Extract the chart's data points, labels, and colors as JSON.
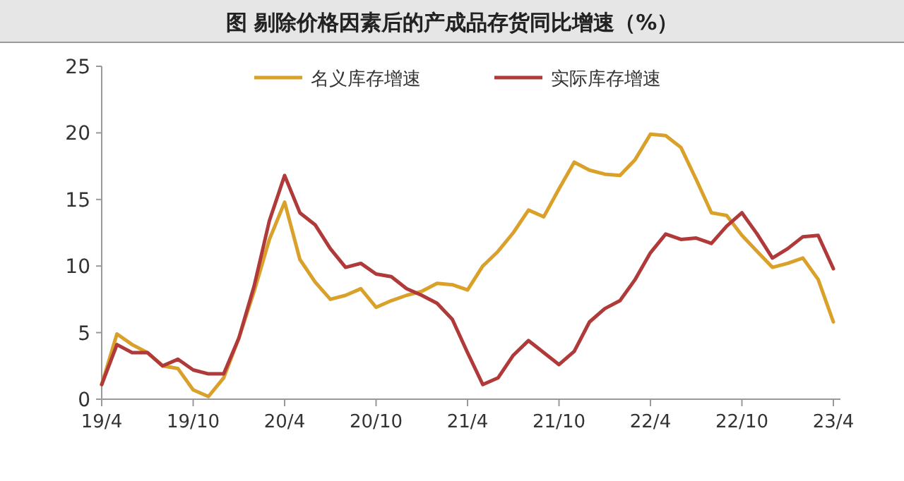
{
  "chart_data": {
    "type": "line",
    "title": "图  剔除价格因素后的产成品存货同比增速（%）",
    "categories": [
      "19/4",
      null,
      null,
      null,
      null,
      null,
      "19/10",
      null,
      null,
      null,
      null,
      null,
      "20/4",
      null,
      null,
      null,
      null,
      null,
      "20/10",
      null,
      null,
      null,
      null,
      null,
      "21/4",
      null,
      null,
      null,
      null,
      null,
      "21/10",
      null,
      null,
      null,
      null,
      null,
      "22/4",
      null,
      null,
      null,
      null,
      null,
      "22/10",
      null,
      null,
      null,
      null,
      null,
      "23/4"
    ],
    "series": [
      {
        "name": "名义库存增速",
        "color": "#d9a02a",
        "values": [
          1.1,
          4.9,
          4.1,
          3.5,
          2.5,
          2.3,
          0.7,
          0.2,
          1.6,
          4.6,
          8.1,
          12.0,
          14.8,
          10.5,
          8.8,
          7.5,
          7.8,
          8.3,
          6.9,
          7.4,
          7.8,
          8.1,
          8.7,
          8.6,
          8.2,
          10.0,
          11.1,
          12.5,
          14.2,
          13.7,
          15.8,
          17.8,
          17.2,
          16.9,
          16.8,
          18.0,
          19.9,
          19.8,
          18.9,
          16.5,
          14.0,
          13.8,
          12.3,
          11.1,
          9.9,
          10.2,
          10.6,
          9.0,
          5.8
        ]
      },
      {
        "name": "实际库存增速",
        "color": "#b03a3a",
        "values": [
          1.1,
          4.1,
          3.5,
          3.5,
          2.5,
          3.0,
          2.2,
          1.9,
          1.9,
          4.6,
          8.5,
          13.4,
          16.8,
          14.0,
          13.1,
          11.3,
          9.9,
          10.2,
          9.4,
          9.2,
          8.3,
          7.8,
          7.2,
          6.0,
          3.5,
          1.1,
          1.6,
          3.3,
          4.4,
          3.5,
          2.6,
          3.6,
          5.8,
          6.8,
          7.4,
          9.0,
          11.0,
          12.4,
          12.0,
          12.1,
          11.7,
          13.0,
          14.0,
          12.4,
          10.6,
          11.3,
          12.2,
          12.3,
          9.8
        ]
      }
    ],
    "ylim": [
      0,
      25
    ],
    "yticks": [
      0,
      5,
      10,
      15,
      20,
      25
    ],
    "legend": "top"
  }
}
